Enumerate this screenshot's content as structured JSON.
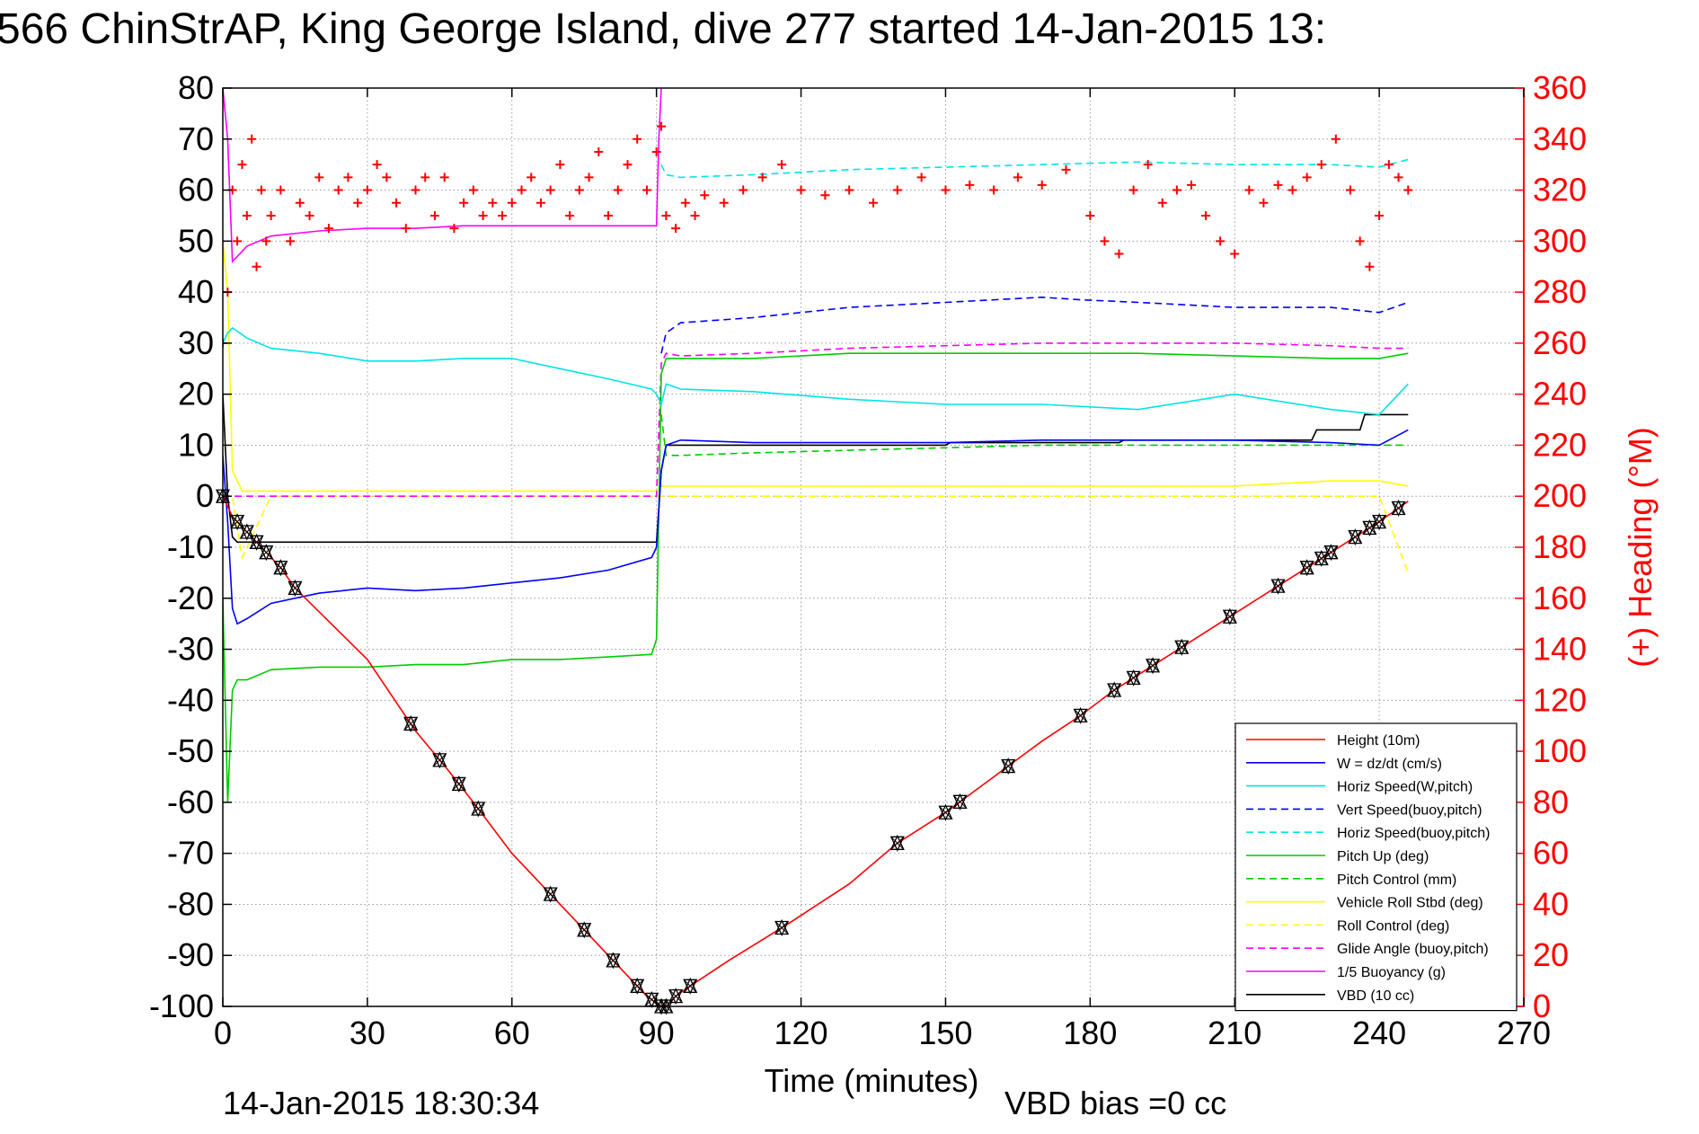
{
  "chart_data": {
    "type": "line",
    "title": "566 ChinStrAP, King George Island, dive 277 started 14-Jan-2015 13:",
    "xlabel": "Time (minutes)",
    "ylabel_right": "(+) Heading (°M)",
    "xlim": [
      0,
      270
    ],
    "ylim": [
      -100,
      80
    ],
    "ylim_right": [
      0,
      360
    ],
    "x_ticks": [
      0,
      30,
      60,
      90,
      120,
      150,
      180,
      210,
      240,
      270
    ],
    "y_ticks": [
      80,
      70,
      60,
      50,
      40,
      30,
      20,
      10,
      0,
      -10,
      -20,
      -30,
      -40,
      -50,
      -60,
      -70,
      -80,
      -90,
      -100
    ],
    "y_ticks_right": [
      360,
      340,
      320,
      300,
      280,
      260,
      240,
      220,
      200,
      180,
      160,
      140,
      120,
      100,
      80,
      60,
      40,
      20,
      0
    ],
    "grid": true,
    "legend_placement": "bottom-right",
    "footer_left": "14-Jan-2015 18:30:34",
    "footer_right": "VBD bias =0 cc",
    "colors": {
      "left_axis": "#000000",
      "right_axis": "#ff0000"
    },
    "series": [
      {
        "name": "Height (10m)",
        "color": "#ff0000",
        "style": "solid",
        "x": [
          0,
          2,
          5,
          8,
          12,
          15,
          30,
          40,
          47,
          52,
          60,
          70,
          80,
          88,
          91,
          92,
          94,
          97,
          105,
          117,
          130,
          140,
          150,
          160,
          170,
          178,
          185,
          190,
          195,
          200,
          210,
          220,
          230,
          240,
          246
        ],
        "y": [
          0,
          -4,
          -7,
          -10,
          -14,
          -18,
          -32,
          -46,
          -54,
          -60,
          -70,
          -80,
          -90,
          -98,
          -100,
          -100,
          -98,
          -96,
          -91,
          -84,
          -76,
          -68,
          -62,
          -55,
          -48,
          -43,
          -38,
          -35,
          -32,
          -29,
          -23,
          -17,
          -11,
          -5,
          -1
        ]
      },
      {
        "name": "W = dz/dt (cm/s)",
        "color": "#0000ff",
        "style": "solid",
        "x": [
          0,
          1,
          2,
          3,
          5,
          10,
          20,
          30,
          40,
          50,
          60,
          70,
          80,
          89,
          90,
          91,
          92,
          95,
          110,
          130,
          150,
          170,
          190,
          210,
          230,
          240,
          246
        ],
        "y": [
          8,
          -5,
          -22,
          -25,
          -24,
          -21,
          -19,
          -18,
          -18.5,
          -18,
          -17,
          -16,
          -14.5,
          -12,
          -10,
          5,
          10,
          11,
          10.5,
          10.5,
          10.5,
          11,
          11,
          11,
          10.5,
          10,
          13
        ]
      },
      {
        "name": "Horiz Speed(W,pitch)",
        "color": "#00e5e5",
        "style": "solid",
        "x": [
          0,
          1,
          2,
          5,
          10,
          20,
          30,
          40,
          50,
          60,
          70,
          80,
          89,
          90,
          91,
          92,
          95,
          110,
          130,
          150,
          170,
          190,
          210,
          230,
          240,
          246
        ],
        "y": [
          30,
          32,
          33,
          31,
          29,
          28,
          26.5,
          26.5,
          27,
          27,
          25,
          23,
          21,
          20,
          18,
          22,
          21,
          20.5,
          19,
          18,
          18,
          17,
          20,
          17,
          16,
          22
        ]
      },
      {
        "name": "Vert Speed(buoy,pitch)",
        "color": "#0000ff",
        "style": "dashed",
        "x": [
          91,
          92,
          95,
          110,
          130,
          150,
          170,
          178,
          190,
          210,
          230,
          240,
          246
        ],
        "y": [
          28,
          32,
          34,
          35,
          37,
          38,
          39,
          38.5,
          38,
          37,
          37,
          36,
          38
        ]
      },
      {
        "name": "Horiz Speed(buoy,pitch)",
        "color": "#00e5e5",
        "style": "dashed",
        "x": [
          91,
          92,
          95,
          110,
          130,
          150,
          170,
          190,
          210,
          230,
          240,
          246
        ],
        "y": [
          65,
          63,
          62.5,
          63,
          64,
          64.5,
          65,
          65.5,
          65,
          65,
          64.5,
          66
        ]
      },
      {
        "name": "Pitch Up (deg)",
        "color": "#00cc00",
        "style": "solid",
        "x": [
          0,
          1,
          2,
          3,
          5,
          10,
          20,
          30,
          40,
          50,
          60,
          70,
          80,
          89,
          90,
          91,
          92,
          95,
          110,
          130,
          150,
          170,
          190,
          210,
          230,
          240,
          246
        ],
        "y": [
          -20,
          -60,
          -38,
          -36,
          -36,
          -34,
          -33.5,
          -33.5,
          -33,
          -33,
          -32,
          -32,
          -31.5,
          -31,
          -28,
          24,
          27,
          27,
          27,
          28,
          28,
          28,
          28,
          27.5,
          27,
          27,
          28
        ]
      },
      {
        "name": "Pitch Control (mm)",
        "color": "#00cc00",
        "style": "dashed",
        "x": [
          91,
          92,
          95,
          110,
          130,
          150,
          170,
          190,
          210,
          230,
          240,
          246
        ],
        "y": [
          16,
          8,
          8,
          8.5,
          9,
          9.5,
          10,
          10,
          10,
          10,
          10,
          10
        ]
      },
      {
        "name": "Vehicle Roll Stbd (deg)",
        "color": "#ffff00",
        "style": "solid",
        "x": [
          0,
          1,
          2,
          4,
          10,
          20,
          30,
          40,
          50,
          60,
          70,
          80,
          89,
          90,
          91,
          92,
          95,
          110,
          130,
          150,
          170,
          190,
          210,
          230,
          240,
          246
        ],
        "y": [
          50,
          40,
          5,
          1,
          1,
          1,
          1,
          1,
          1,
          1,
          1,
          1,
          1,
          1,
          2,
          2,
          2,
          2,
          2,
          2,
          2,
          2,
          2,
          3,
          3,
          2
        ]
      },
      {
        "name": "Roll Control (deg)",
        "color": "#ffff00",
        "style": "dashed",
        "x": [
          0,
          2,
          4,
          10,
          30,
          60,
          89,
          90,
          91,
          92,
          95,
          130,
          170,
          210,
          240,
          246
        ],
        "y": [
          0,
          0,
          -12,
          0,
          0,
          0,
          0,
          0,
          0,
          0,
          0,
          0,
          0,
          0,
          0,
          -15
        ]
      },
      {
        "name": "Glide Angle (buoy,pitch)",
        "color": "#ff00ff",
        "style": "dashed",
        "x": [
          0,
          1,
          2,
          10,
          30,
          60,
          89,
          90,
          91,
          92,
          95,
          110,
          130,
          150,
          170,
          190,
          210,
          230,
          240,
          246
        ],
        "y": [
          0,
          0,
          0,
          0,
          0,
          0,
          0,
          0,
          26,
          28,
          27.5,
          28,
          29,
          29.5,
          30,
          30,
          30,
          29.5,
          29,
          29
        ]
      },
      {
        "name": "1/5 Buoyancy (g)",
        "color": "#ff00ff",
        "style": "solid",
        "x": [
          0,
          1,
          2,
          3,
          5,
          10,
          20,
          30,
          40,
          50,
          60,
          70,
          80,
          90,
          90.5,
          91
        ],
        "y": [
          80,
          70,
          46,
          47,
          49,
          51,
          52,
          52.5,
          52.5,
          53,
          53,
          53,
          53,
          53,
          70,
          80
        ]
      },
      {
        "name": "VBD (10 cc)",
        "color": "#000000",
        "style": "solid",
        "x": [
          0,
          1,
          2,
          3,
          90,
          91,
          92,
          95,
          150,
          151,
          186,
          187,
          226,
          227,
          236,
          237,
          246
        ],
        "y": [
          20,
          0,
          -8,
          -9,
          -9,
          5,
          10,
          10,
          10,
          10.5,
          10.5,
          11,
          11,
          13,
          13,
          16,
          16
        ]
      }
    ],
    "heading_series": {
      "name": "(+) Heading (°M)",
      "color": "#ff0000",
      "marker": "+",
      "x": [
        0,
        1,
        2,
        3,
        4,
        5,
        6,
        7,
        8,
        9,
        10,
        12,
        14,
        16,
        18,
        20,
        22,
        24,
        26,
        28,
        30,
        32,
        34,
        36,
        38,
        40,
        42,
        44,
        46,
        48,
        50,
        52,
        54,
        56,
        58,
        60,
        62,
        64,
        66,
        68,
        70,
        72,
        74,
        76,
        78,
        80,
        82,
        84,
        86,
        88,
        90,
        91,
        92,
        94,
        96,
        98,
        100,
        104,
        108,
        112,
        116,
        120,
        125,
        130,
        135,
        140,
        145,
        150,
        155,
        160,
        165,
        170,
        175,
        180,
        183,
        186,
        189,
        192,
        195,
        198,
        201,
        204,
        207,
        210,
        213,
        216,
        219,
        222,
        225,
        228,
        231,
        234,
        236,
        238,
        240,
        242,
        244,
        246
      ],
      "y": [
        260,
        280,
        320,
        300,
        330,
        310,
        340,
        290,
        320,
        300,
        310,
        320,
        300,
        315,
        310,
        325,
        305,
        320,
        325,
        315,
        320,
        330,
        325,
        315,
        305,
        320,
        325,
        310,
        325,
        305,
        315,
        320,
        310,
        315,
        310,
        315,
        320,
        325,
        315,
        320,
        330,
        310,
        320,
        325,
        335,
        310,
        320,
        330,
        340,
        320,
        335,
        345,
        310,
        305,
        315,
        310,
        318,
        315,
        320,
        325,
        330,
        320,
        318,
        320,
        315,
        320,
        325,
        320,
        322,
        320,
        325,
        322,
        328,
        310,
        300,
        295,
        320,
        330,
        315,
        320,
        322,
        310,
        300,
        295,
        320,
        315,
        322,
        320,
        325,
        330,
        340,
        320,
        300,
        290,
        310,
        330,
        325,
        320
      ]
    },
    "waypoint_markers": {
      "series": "Height (10m)",
      "marker": "triangles-x",
      "color": "#000000",
      "x": [
        0,
        3,
        5,
        7,
        9,
        12,
        15,
        39,
        45,
        49,
        53,
        68,
        75,
        81,
        86,
        89,
        91,
        92,
        94,
        97,
        116,
        140,
        150,
        153,
        163,
        178,
        185,
        189,
        193,
        199,
        209,
        219,
        225,
        228,
        230,
        235,
        238,
        240,
        244
      ]
    }
  }
}
